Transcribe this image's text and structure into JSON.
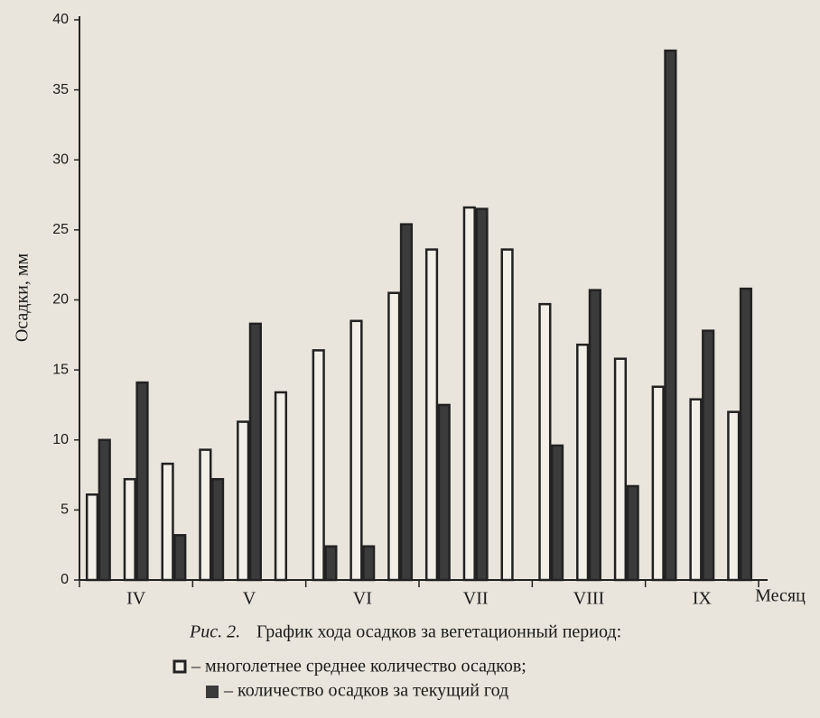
{
  "chart_data": {
    "type": "bar",
    "caption_label": "Рис. 2.",
    "title": "График хода осадков за вегетационный период:",
    "y_label": "Осадки, мм",
    "x_label": "Месяц",
    "categories": [
      null,
      "IV",
      null,
      null,
      "V",
      null,
      null,
      "VI",
      null,
      null,
      "VII",
      null,
      null,
      "VIII",
      null,
      null,
      "IX",
      null
    ],
    "series": [
      {
        "name": "– многолетнее среднее количество осадков;",
        "color": "#f2efe8",
        "values": [
          6.1,
          7.2,
          8.3,
          9.3,
          11.3,
          13.4,
          16.4,
          18.5,
          20.5,
          23.6,
          26.6,
          23.6,
          19.7,
          16.8,
          15.8,
          13.8,
          12.9,
          12.0
        ]
      },
      {
        "name": "– количество осадков за текущий год",
        "color": "#3b3b3b",
        "values": [
          10.0,
          14.1,
          3.2,
          7.2,
          18.3,
          0,
          2.4,
          2.4,
          25.4,
          12.5,
          26.5,
          0,
          9.6,
          20.7,
          6.7,
          37.8,
          17.8,
          20.8
        ]
      }
    ],
    "ylim": [
      0,
      40
    ],
    "yticks": [
      0,
      5,
      10,
      15,
      20,
      25,
      30,
      35,
      40
    ]
  }
}
